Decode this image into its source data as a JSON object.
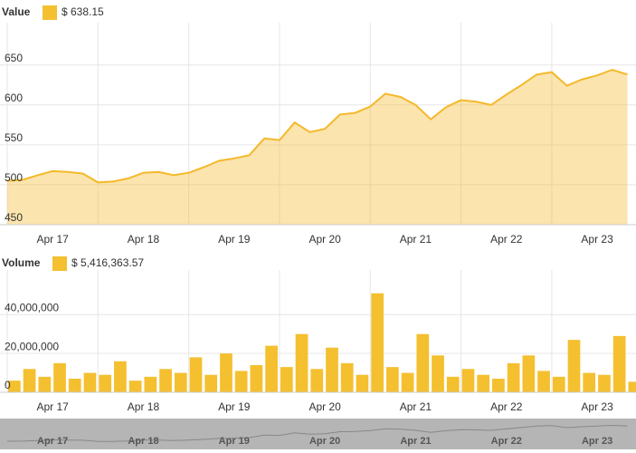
{
  "chart_data": [
    {
      "type": "area",
      "legend_label": "$ 638.15",
      "categories": [
        null,
        null,
        null,
        "Apr 17",
        null,
        null,
        null,
        null,
        null,
        "Apr 18",
        null,
        null,
        null,
        null,
        null,
        "Apr 19",
        null,
        null,
        null,
        null,
        null,
        "Apr 20",
        null,
        null,
        null,
        null,
        null,
        "Apr 21",
        null,
        null,
        null,
        null,
        null,
        "Apr 22",
        null,
        null,
        null,
        null,
        null,
        "Apr 23",
        null,
        null
      ],
      "series": [
        {
          "name": "Value",
          "color": "#f4b92a",
          "values": [
            505,
            506,
            512,
            517,
            516,
            514,
            503,
            504,
            508,
            515,
            516,
            512,
            515,
            522,
            530,
            533,
            537,
            558,
            556,
            578,
            566,
            570,
            588,
            590,
            598,
            614,
            610,
            600,
            582,
            597,
            606,
            604,
            600,
            613,
            625,
            638,
            641,
            624,
            632,
            637,
            644,
            638.15
          ]
        }
      ],
      "ylim": [
        450,
        703
      ],
      "yticks": [
        450,
        500,
        550,
        600,
        650
      ],
      "grid": true
    },
    {
      "type": "bar",
      "legend_label": "$ 5,416,363.57",
      "categories": [
        null,
        null,
        null,
        "Apr 17",
        null,
        null,
        null,
        null,
        null,
        "Apr 18",
        null,
        null,
        null,
        null,
        null,
        "Apr 19",
        null,
        null,
        null,
        null,
        null,
        "Apr 20",
        null,
        null,
        null,
        null,
        null,
        "Apr 21",
        null,
        null,
        null,
        null,
        null,
        "Apr 22",
        null,
        null,
        null,
        null,
        null,
        "Apr 23",
        null,
        null
      ],
      "series": [
        {
          "name": "Volume",
          "color": "#f4c030",
          "values": [
            6000000,
            12000000,
            8000000,
            15000000,
            7000000,
            10000000,
            9000000,
            16000000,
            6000000,
            8000000,
            12000000,
            10000000,
            18000000,
            9000000,
            20000000,
            11000000,
            14000000,
            24000000,
            13000000,
            30000000,
            12000000,
            23000000,
            15000000,
            9000000,
            51000000,
            13000000,
            10000000,
            30000000,
            19000000,
            8000000,
            12000000,
            9000000,
            7000000,
            15000000,
            19000000,
            11000000,
            8000000,
            27000000,
            10000000,
            9000000,
            29000000,
            5416363.57
          ]
        }
      ],
      "ylim": [
        0,
        63000000
      ],
      "yticks": [
        0,
        {
          "value": 20000000,
          "label": "20,000,000"
        },
        {
          "value": 40000000,
          "label": "40,000,000"
        }
      ],
      "grid": true
    }
  ]
}
